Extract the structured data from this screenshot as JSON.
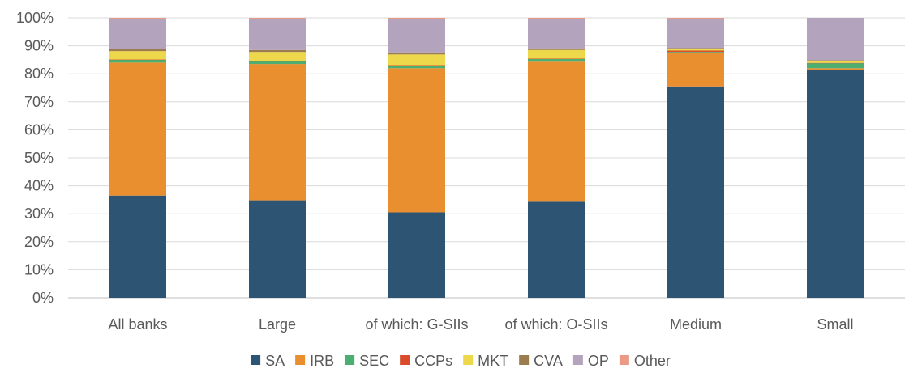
{
  "chart_data": {
    "type": "bar",
    "stacked": true,
    "categories": [
      "All banks",
      "Large",
      "of which: G-SIIs",
      "of which: O-SIIs",
      "Medium",
      "Small"
    ],
    "ylim": [
      0,
      100
    ],
    "yticks": [
      "0%",
      "10%",
      "20%",
      "30%",
      "40%",
      "50%",
      "60%",
      "70%",
      "80%",
      "90%",
      "100%"
    ],
    "grid": true,
    "legend_position": "bottom",
    "series": [
      {
        "name": "SA",
        "color": "#2e5473",
        "values": [
          36.5,
          34.8,
          30.5,
          34.3,
          75.5,
          81.5
        ]
      },
      {
        "name": "IRB",
        "color": "#ea8f2f",
        "values": [
          47.5,
          48.7,
          51.5,
          50.0,
          12.0,
          0.5
        ]
      },
      {
        "name": "SEC",
        "color": "#4caf71",
        "values": [
          1.0,
          0.9,
          1.0,
          1.0,
          0.3,
          1.8
        ]
      },
      {
        "name": "CCPs",
        "color": "#d94b2b",
        "values": [
          0.1,
          0.1,
          0.1,
          0.1,
          0.5,
          0.1
        ]
      },
      {
        "name": "MKT",
        "color": "#ecd84a",
        "values": [
          3.0,
          3.3,
          3.8,
          3.1,
          0.6,
          0.8
        ]
      },
      {
        "name": "CVA",
        "color": "#9c7c4e",
        "values": [
          0.7,
          0.7,
          0.7,
          0.6,
          0.3,
          0.2
        ]
      },
      {
        "name": "OP",
        "color": "#b4a3bd",
        "values": [
          10.7,
          11.0,
          11.9,
          10.4,
          10.5,
          15.1
        ]
      },
      {
        "name": "Other",
        "color": "#ec9a86",
        "values": [
          0.5,
          0.5,
          0.5,
          0.5,
          0.3,
          0.0
        ]
      }
    ]
  }
}
